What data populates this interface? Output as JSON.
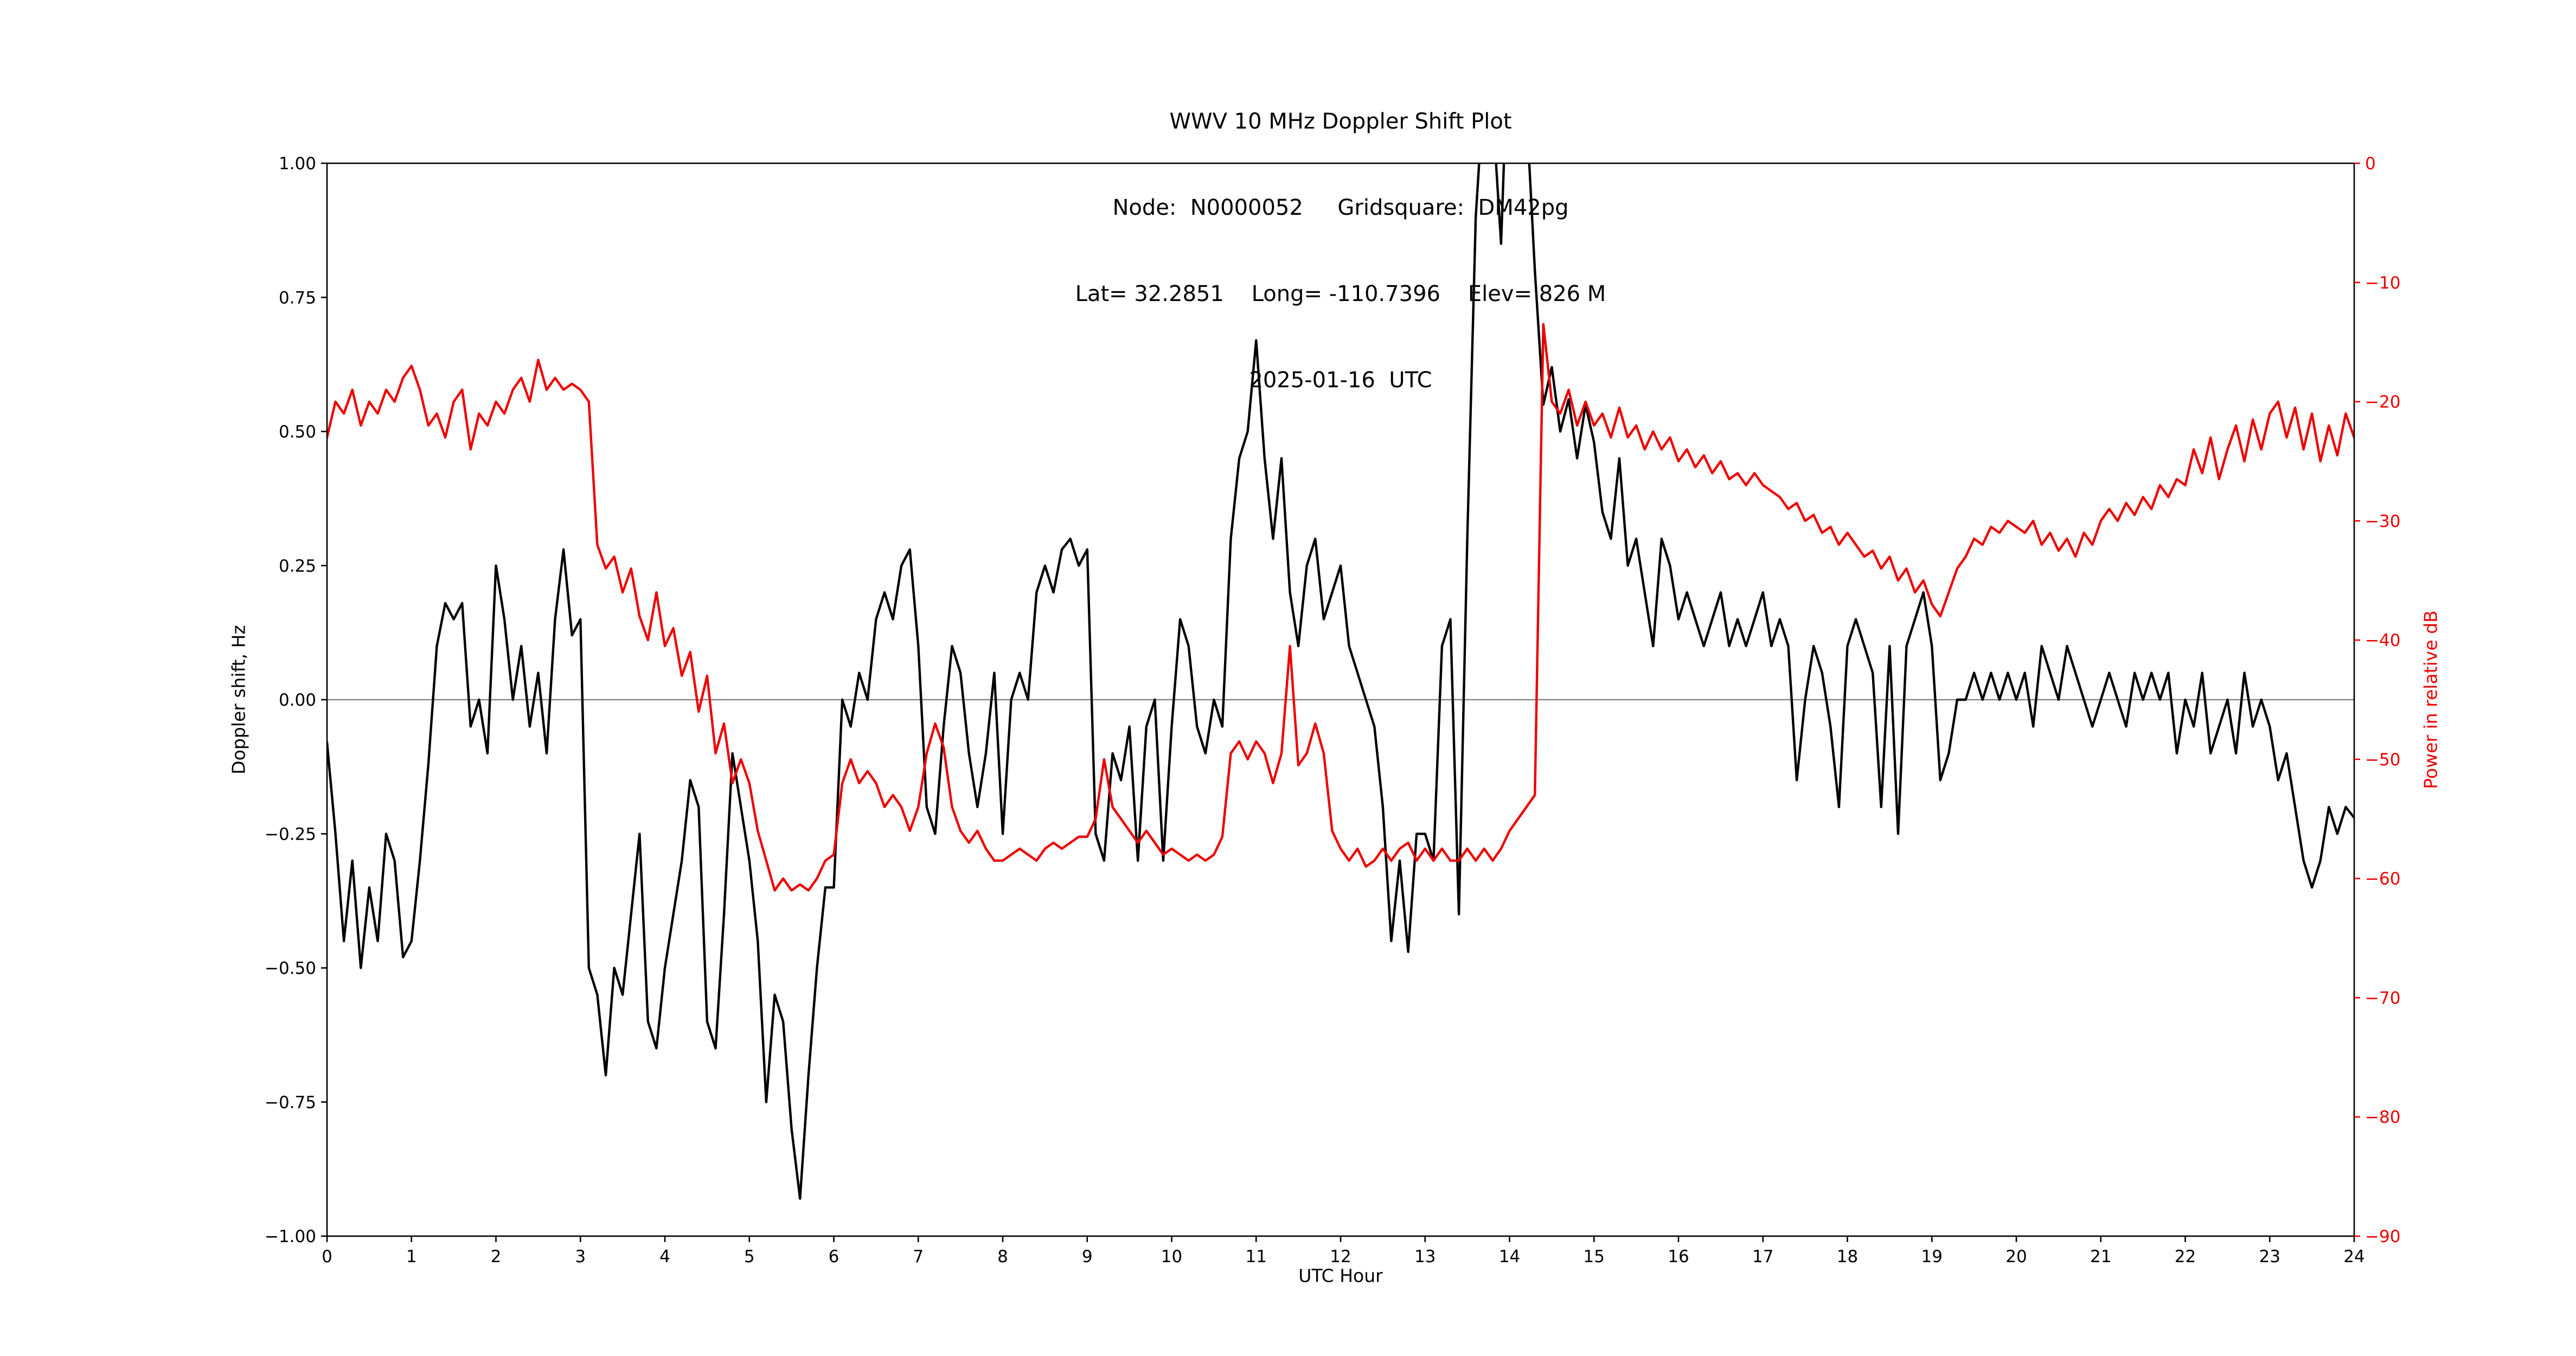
{
  "header": {
    "line1": "WWV 10 MHz Doppler Shift Plot",
    "line2": "Node:  N0000052     Gridsquare:  DM42pg",
    "line3": "Lat= 32.2851    Long= -110.7396    Elev= 826 M",
    "line4": "2025-01-16  UTC"
  },
  "chart_data": {
    "type": "line",
    "title": "WWV 10 MHz Doppler Shift Plot",
    "subtitle_lines": [
      "Node:  N0000052     Gridsquare:  DM42pg",
      "Lat= 32.2851    Long= -110.7396    Elev= 826 M",
      "2025-01-16  UTC"
    ],
    "xlabel": "UTC Hour",
    "ylabel_left": "Doppler shift, Hz",
    "ylabel_right": "Power in relative dB",
    "xlim": [
      0,
      24
    ],
    "ylim_left": [
      -1.0,
      1.0
    ],
    "ylim_right": [
      -90,
      0
    ],
    "grid": false,
    "zero_line": true,
    "legend": "none",
    "colors": {
      "doppler": "#000000",
      "power": "#ee0000",
      "zero_line": "#808080",
      "frame": "#000000"
    },
    "xticks": [
      0,
      1,
      2,
      3,
      4,
      5,
      6,
      7,
      8,
      9,
      10,
      11,
      12,
      13,
      14,
      15,
      16,
      17,
      18,
      19,
      20,
      21,
      22,
      23,
      24
    ],
    "yticks_left": [
      {
        "v": 1.0,
        "label": "1.00"
      },
      {
        "v": 0.75,
        "label": "0.75"
      },
      {
        "v": 0.5,
        "label": "0.50"
      },
      {
        "v": 0.25,
        "label": "0.25"
      },
      {
        "v": 0.0,
        "label": "0.00"
      },
      {
        "v": -0.25,
        "label": "−0.25"
      },
      {
        "v": -0.5,
        "label": "−0.50"
      },
      {
        "v": -0.75,
        "label": "−0.75"
      },
      {
        "v": -1.0,
        "label": "−1.00"
      }
    ],
    "yticks_right": [
      {
        "v": 0,
        "label": "0"
      },
      {
        "v": -10,
        "label": "−10"
      },
      {
        "v": -20,
        "label": "−20"
      },
      {
        "v": -30,
        "label": "−30"
      },
      {
        "v": -40,
        "label": "−40"
      },
      {
        "v": -50,
        "label": "−50"
      },
      {
        "v": -60,
        "label": "−60"
      },
      {
        "v": -70,
        "label": "−70"
      },
      {
        "v": -80,
        "label": "−80"
      },
      {
        "v": -90,
        "label": "−90"
      }
    ],
    "series": [
      {
        "id": "doppler-shift-line",
        "name": "Doppler shift, Hz",
        "axis": "left",
        "color": "#000000",
        "x_start": 0,
        "x_step": 0.1,
        "y": [
          -0.08,
          -0.25,
          -0.45,
          -0.3,
          -0.5,
          -0.35,
          -0.45,
          -0.25,
          -0.3,
          -0.48,
          -0.45,
          -0.3,
          -0.12,
          0.1,
          0.18,
          0.15,
          0.18,
          -0.05,
          0.0,
          -0.1,
          0.25,
          0.15,
          0.0,
          0.1,
          -0.05,
          0.05,
          -0.1,
          0.15,
          0.28,
          0.12,
          0.15,
          -0.5,
          -0.55,
          -0.7,
          -0.5,
          -0.55,
          -0.4,
          -0.25,
          -0.6,
          -0.65,
          -0.5,
          -0.4,
          -0.3,
          -0.15,
          -0.2,
          -0.6,
          -0.65,
          -0.4,
          -0.1,
          -0.2,
          -0.3,
          -0.45,
          -0.75,
          -0.55,
          -0.6,
          -0.8,
          -0.93,
          -0.7,
          -0.5,
          -0.35,
          -0.35,
          0.0,
          -0.05,
          0.05,
          0.0,
          0.15,
          0.2,
          0.15,
          0.25,
          0.28,
          0.1,
          -0.2,
          -0.25,
          -0.05,
          0.1,
          0.05,
          -0.1,
          -0.2,
          -0.1,
          0.05,
          -0.25,
          0.0,
          0.05,
          0.0,
          0.2,
          0.25,
          0.2,
          0.28,
          0.3,
          0.25,
          0.28,
          -0.25,
          -0.3,
          -0.1,
          -0.15,
          -0.05,
          -0.3,
          -0.05,
          0.0,
          -0.3,
          -0.05,
          0.15,
          0.1,
          -0.05,
          -0.1,
          0.0,
          -0.05,
          0.3,
          0.45,
          0.5,
          0.67,
          0.45,
          0.3,
          0.45,
          0.2,
          0.1,
          0.25,
          0.3,
          0.15,
          0.2,
          0.25,
          0.1,
          0.05,
          0.0,
          -0.05,
          -0.2,
          -0.45,
          -0.3,
          -0.47,
          -0.25,
          -0.25,
          -0.3,
          0.1,
          0.15,
          -0.4,
          0.3,
          0.9,
          1.15,
          1.1,
          0.85,
          1.3,
          1.25,
          1.1,
          0.8,
          0.55,
          0.62,
          0.5,
          0.56,
          0.45,
          0.55,
          0.48,
          0.35,
          0.3,
          0.45,
          0.25,
          0.3,
          0.2,
          0.1,
          0.3,
          0.25,
          0.15,
          0.2,
          0.15,
          0.1,
          0.15,
          0.2,
          0.1,
          0.15,
          0.1,
          0.15,
          0.2,
          0.1,
          0.15,
          0.1,
          -0.15,
          0.0,
          0.1,
          0.05,
          -0.05,
          -0.2,
          0.1,
          0.15,
          0.1,
          0.05,
          -0.2,
          0.1,
          -0.25,
          0.1,
          0.15,
          0.2,
          0.1,
          -0.15,
          -0.1,
          0.0,
          0.0,
          0.05,
          0.0,
          0.05,
          0.0,
          0.05,
          0.0,
          0.05,
          -0.05,
          0.1,
          0.05,
          0.0,
          0.1,
          0.05,
          0.0,
          -0.05,
          0.0,
          0.05,
          0.0,
          -0.05,
          0.05,
          0.0,
          0.05,
          0.0,
          0.05,
          -0.1,
          0.0,
          -0.05,
          0.05,
          -0.1,
          -0.05,
          0.0,
          -0.1,
          0.05,
          -0.05,
          0.0,
          -0.05,
          -0.15,
          -0.1,
          -0.2,
          -0.3,
          -0.35,
          -0.3,
          -0.2,
          -0.25,
          -0.2,
          -0.22
        ]
      },
      {
        "id": "power-line",
        "name": "Power in relative dB",
        "axis": "right",
        "color": "#ee0000",
        "x_start": 0,
        "x_step": 0.1,
        "y": [
          -23,
          -20,
          -21,
          -19,
          -22,
          -20,
          -21,
          -19,
          -20,
          -18,
          -17,
          -19,
          -22,
          -21,
          -23,
          -20,
          -19,
          -24,
          -21,
          -22,
          -20,
          -21,
          -19,
          -18,
          -20,
          -16.5,
          -19,
          -18,
          -19,
          -18.5,
          -19,
          -20,
          -32,
          -34,
          -33,
          -36,
          -34,
          -38,
          -40,
          -36,
          -40.5,
          -39,
          -43,
          -41,
          -46,
          -43,
          -49.5,
          -47,
          -52,
          -50,
          -52,
          -56,
          -58.5,
          -61,
          -60,
          -61,
          -60.5,
          -61,
          -60,
          -58.5,
          -58,
          -52,
          -50,
          -52,
          -51,
          -52,
          -54,
          -53,
          -54,
          -56,
          -54,
          -49.5,
          -47,
          -49,
          -54,
          -56,
          -57,
          -56,
          -57.5,
          -58.5,
          -58.5,
          -58,
          -57.5,
          -58,
          -58.5,
          -57.5,
          -57,
          -57.5,
          -57,
          -56.5,
          -56.5,
          -55,
          -50,
          -54,
          -55,
          -56,
          -57,
          -56,
          -57,
          -58,
          -57.5,
          -58,
          -58.5,
          -58,
          -58.5,
          -58,
          -56.5,
          -49.5,
          -48.5,
          -50,
          -48.5,
          -49.5,
          -52,
          -49.5,
          -40.5,
          -50.5,
          -49.5,
          -47,
          -49.5,
          -56,
          -57.5,
          -58.5,
          -57.5,
          -59,
          -58.5,
          -57.5,
          -58.5,
          -57.5,
          -57,
          -58.5,
          -57.5,
          -58.5,
          -57.5,
          -58.5,
          -58.5,
          -57.5,
          -58.5,
          -57.5,
          -58.5,
          -57.5,
          -56,
          -55,
          -54,
          -53,
          -13.5,
          -20,
          -21,
          -19,
          -22,
          -20,
          -22,
          -21,
          -23,
          -20.5,
          -23,
          -22,
          -24,
          -22.5,
          -24,
          -23,
          -25,
          -24,
          -25.5,
          -24.5,
          -26,
          -25,
          -26.5,
          -26,
          -27,
          -26,
          -27,
          -27.5,
          -28,
          -29,
          -28.5,
          -30,
          -29.5,
          -31,
          -30.5,
          -32,
          -31,
          -32,
          -33,
          -32.5,
          -34,
          -33,
          -35,
          -34,
          -36,
          -35,
          -37,
          -38,
          -36,
          -34,
          -33,
          -31.5,
          -32,
          -30.5,
          -31,
          -30,
          -30.5,
          -31,
          -30,
          -32,
          -31,
          -32.5,
          -31.5,
          -33,
          -31,
          -32,
          -30,
          -29,
          -30,
          -28.5,
          -29.5,
          -28,
          -29,
          -27,
          -28,
          -26.5,
          -27,
          -24,
          -26,
          -23,
          -26.5,
          -24,
          -22,
          -25,
          -21.5,
          -24,
          -21,
          -20,
          -23,
          -20.5,
          -24,
          -21,
          -25,
          -22,
          -24.5,
          -21,
          -23
        ]
      }
    ]
  }
}
